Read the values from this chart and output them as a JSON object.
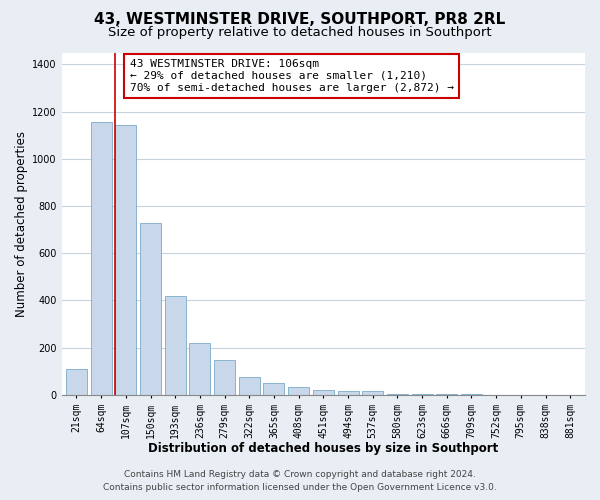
{
  "title": "43, WESTMINSTER DRIVE, SOUTHPORT, PR8 2RL",
  "subtitle": "Size of property relative to detached houses in Southport",
  "xlabel": "Distribution of detached houses by size in Southport",
  "ylabel": "Number of detached properties",
  "categories": [
    "21sqm",
    "64sqm",
    "107sqm",
    "150sqm",
    "193sqm",
    "236sqm",
    "279sqm",
    "322sqm",
    "365sqm",
    "408sqm",
    "451sqm",
    "494sqm",
    "537sqm",
    "580sqm",
    "623sqm",
    "666sqm",
    "709sqm",
    "752sqm",
    "795sqm",
    "838sqm",
    "881sqm"
  ],
  "values": [
    110,
    1155,
    1145,
    730,
    420,
    220,
    148,
    75,
    50,
    35,
    20,
    15,
    15,
    2,
    2,
    2,
    5,
    0,
    0,
    0,
    0
  ],
  "bar_color": "#c8d8ea",
  "bar_edge_color": "#7aaac8",
  "highlight_bar_index": 2,
  "highlight_line_color": "#cc0000",
  "annotation_text": "43 WESTMINSTER DRIVE: 106sqm\n← 29% of detached houses are smaller (1,210)\n70% of semi-detached houses are larger (2,872) →",
  "annotation_box_color": "#ffffff",
  "annotation_box_edge_color": "#cc0000",
  "ylim": [
    0,
    1450
  ],
  "yticks": [
    0,
    200,
    400,
    600,
    800,
    1000,
    1200,
    1400
  ],
  "footer_line1": "Contains HM Land Registry data © Crown copyright and database right 2024.",
  "footer_line2": "Contains public sector information licensed under the Open Government Licence v3.0.",
  "background_color": "#e8eef4",
  "plot_bg_color": "#ffffff",
  "grid_color": "#c8d4dc",
  "title_fontsize": 11,
  "subtitle_fontsize": 9.5,
  "axis_label_fontsize": 8.5,
  "tick_fontsize": 7,
  "annotation_fontsize": 8,
  "footer_fontsize": 6.5
}
